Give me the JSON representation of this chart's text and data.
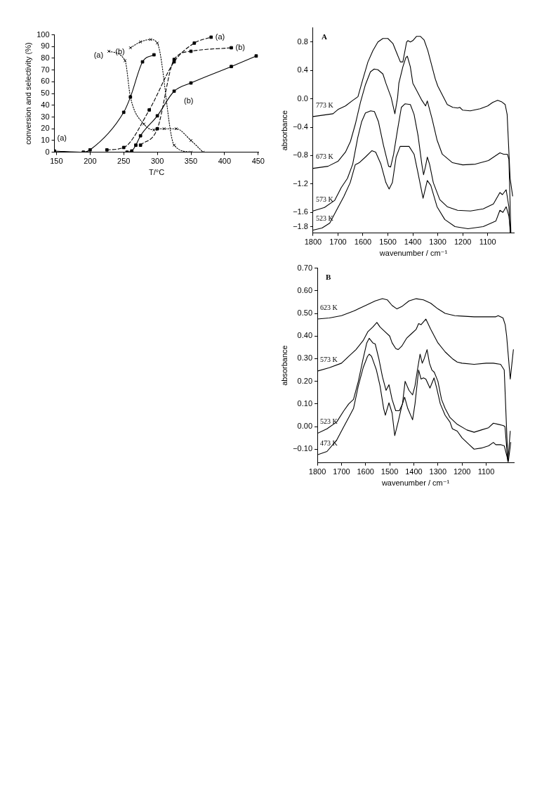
{
  "chart_data": [
    {
      "type": "line",
      "xlabel": "T/°C",
      "ylabel": "conversion and selectivity (%)",
      "xlim": [
        147,
        451
      ],
      "ylim": [
        0,
        100
      ],
      "xticks": [
        150,
        200,
        250,
        300,
        350,
        400,
        450
      ],
      "yticks": [
        0,
        10,
        20,
        30,
        40,
        50,
        60,
        70,
        80,
        90,
        100
      ],
      "series": [
        {
          "name": "(a)",
          "color": "#000000",
          "line_style": "solid",
          "marker": "square",
          "x": [
            147,
            190,
            200,
            250,
            260,
            278,
            295
          ],
          "values": [
            1,
            0,
            2,
            34,
            47,
            77,
            83
          ]
        },
        {
          "name": "(b)",
          "color": "#000000",
          "line_style": "solid",
          "marker": "square",
          "x": [
            255,
            262,
            268,
            275,
            300,
            325,
            350,
            410,
            447
          ],
          "values": [
            0,
            1,
            6,
            14,
            31,
            52,
            59,
            73,
            82
          ]
        },
        {
          "name": "(a)",
          "color": "#000000",
          "line_style": "dashed",
          "marker": "square",
          "x": [
            225,
            250,
            288,
            325,
            355,
            380
          ],
          "values": [
            2,
            4,
            36,
            77,
            93,
            98
          ]
        },
        {
          "name": "(b)",
          "color": "#000000",
          "line_style": "dashed",
          "marker": "square",
          "x": [
            275,
            300,
            325,
            350,
            410
          ],
          "values": [
            6,
            20,
            79,
            86,
            89
          ]
        },
        {
          "name": "(a)",
          "color": "#000000",
          "line_style": "dotted",
          "marker": "cross",
          "x": [
            228,
            252,
            260,
            280,
            295,
            300,
            310,
            328,
            350,
            368
          ],
          "values": [
            86,
            78,
            47,
            24,
            19,
            20,
            20,
            20,
            10,
            0
          ]
        },
        {
          "name": "(b)",
          "color": "#000000",
          "line_style": "dotted",
          "marker": "cross",
          "x": [
            260,
            275,
            290,
            300,
            325,
            350
          ],
          "values": [
            89,
            94,
            96,
            93,
            6,
            0
          ]
        }
      ]
    },
    {
      "type": "line",
      "xlabel": "wavenumber / cm⁻¹",
      "ylabel": "absorbance",
      "annotations": [
        "A"
      ],
      "xlim": [
        1800,
        995
      ],
      "ylim": [
        -1.89,
        1.0
      ],
      "xticks": [
        1800,
        1700,
        1600,
        1500,
        1400,
        1300,
        1200,
        1100
      ],
      "yticks": [
        {
          "value": 0.8,
          "label": "0.8"
        },
        {
          "value": 0.4,
          "label": "0.4"
        },
        {
          "value": 0,
          "label": "0.0"
        },
        {
          "value": -0.4,
          "label": "−0.4"
        },
        {
          "value": -0.8,
          "label": "−0.8"
        },
        {
          "value": -1.2,
          "label": "−1.2"
        },
        {
          "value": -1.6,
          "label": "−1.6"
        },
        {
          "value": -1.8,
          "label": "−1.8"
        }
      ],
      "series": [
        {
          "name": "773 K",
          "color": "#000000",
          "x": [
            1800,
            1720,
            1700,
            1670,
            1640,
            1620,
            1600,
            1580,
            1560,
            1540,
            1520,
            1500,
            1480,
            1465,
            1450,
            1440,
            1425,
            1420,
            1410,
            1400,
            1385,
            1370,
            1355,
            1340,
            1325,
            1310,
            1300,
            1262,
            1240,
            1220,
            1212,
            1200,
            1170,
            1130,
            1100,
            1080,
            1060,
            1045,
            1030,
            1022,
            1010,
            1000
          ],
          "values": [
            -0.25,
            -0.21,
            -0.15,
            -0.1,
            -0.02,
            0.03,
            0.28,
            0.52,
            0.68,
            0.8,
            0.85,
            0.85,
            0.78,
            0.65,
            0.52,
            0.52,
            0.8,
            0.82,
            0.8,
            0.82,
            0.88,
            0.88,
            0.83,
            0.68,
            0.48,
            0.28,
            0.18,
            -0.08,
            -0.12,
            -0.13,
            -0.12,
            -0.16,
            -0.17,
            -0.14,
            -0.1,
            -0.05,
            -0.02,
            -0.04,
            -0.08,
            -0.22,
            -1.12,
            -1.37
          ]
        },
        {
          "name": "673 K",
          "color": "#000000",
          "x": [
            1800,
            1740,
            1700,
            1670,
            1650,
            1630,
            1610,
            1590,
            1570,
            1555,
            1540,
            1520,
            1508,
            1487,
            1472,
            1461,
            1456,
            1440,
            1428,
            1422,
            1410,
            1400,
            1385,
            1364,
            1349,
            1342,
            1323,
            1303,
            1282,
            1241,
            1200,
            1149,
            1097,
            1051,
            1036,
            1021,
            1015,
            1007
          ],
          "values": [
            -0.98,
            -0.95,
            -0.88,
            -0.75,
            -0.6,
            -0.35,
            -0.05,
            0.2,
            0.38,
            0.42,
            0.41,
            0.35,
            0.22,
            0.02,
            -0.21,
            0.02,
            0.22,
            0.45,
            0.58,
            0.6,
            0.45,
            0.22,
            0.12,
            -0.02,
            -0.1,
            -0.03,
            -0.28,
            -0.58,
            -0.78,
            -0.9,
            -0.93,
            -0.92,
            -0.87,
            -0.76,
            -0.78,
            -0.78,
            -0.85,
            -1.88
          ]
        },
        {
          "name": "573 K",
          "color": "#000000",
          "x": [
            1800,
            1754,
            1713,
            1687,
            1662,
            1641,
            1621,
            1605,
            1590,
            1569,
            1554,
            1538,
            1518,
            1497,
            1489,
            1477,
            1462,
            1446,
            1431,
            1410,
            1395,
            1379,
            1364,
            1357,
            1349,
            1342,
            1333,
            1318,
            1292,
            1262,
            1221,
            1169,
            1118,
            1077,
            1051,
            1041,
            1026,
            1015,
            1010
          ],
          "values": [
            -1.58,
            -1.53,
            -1.43,
            -1.25,
            -1.12,
            -0.92,
            -0.55,
            -0.32,
            -0.2,
            -0.17,
            -0.18,
            -0.32,
            -0.65,
            -0.95,
            -0.96,
            -0.78,
            -0.45,
            -0.12,
            -0.07,
            -0.08,
            -0.22,
            -0.52,
            -0.92,
            -1.07,
            -0.95,
            -0.82,
            -0.92,
            -1.18,
            -1.42,
            -1.52,
            -1.57,
            -1.58,
            -1.55,
            -1.48,
            -1.32,
            -1.35,
            -1.28,
            -1.52,
            -1.88
          ]
        },
        {
          "name": "523 K",
          "color": "#000000",
          "x": [
            1800,
            1764,
            1733,
            1703,
            1677,
            1651,
            1631,
            1615,
            1590,
            1564,
            1549,
            1528,
            1508,
            1495,
            1482,
            1467,
            1451,
            1415,
            1395,
            1379,
            1359,
            1342,
            1328,
            1303,
            1272,
            1231,
            1179,
            1118,
            1067,
            1051,
            1039,
            1026,
            1015,
            1008
          ],
          "values": [
            -1.85,
            -1.82,
            -1.75,
            -1.55,
            -1.38,
            -1.18,
            -0.93,
            -0.9,
            -0.82,
            -0.73,
            -0.75,
            -0.92,
            -1.18,
            -1.27,
            -1.18,
            -0.82,
            -0.67,
            -0.67,
            -0.78,
            -1.05,
            -1.4,
            -1.15,
            -1.22,
            -1.52,
            -1.7,
            -1.8,
            -1.83,
            -1.8,
            -1.72,
            -1.57,
            -1.6,
            -1.52,
            -1.65,
            -1.88
          ]
        }
      ]
    },
    {
      "type": "line",
      "xlabel": "wavenumber / cm⁻¹",
      "ylabel": "absorbance",
      "annotations": [
        "B"
      ],
      "xlim": [
        1800,
        985
      ],
      "ylim": [
        -0.16,
        0.7
      ],
      "xticks": [
        1800,
        1700,
        1600,
        1500,
        1400,
        1300,
        1200,
        1100
      ],
      "yticks": [
        {
          "value": 0.7,
          "label": "0.70"
        },
        {
          "value": 0.6,
          "label": "0.60"
        },
        {
          "value": 0.5,
          "label": "0.50"
        },
        {
          "value": 0.4,
          "label": "0.40"
        },
        {
          "value": 0.3,
          "label": "0.30"
        },
        {
          "value": 0.2,
          "label": "0.20"
        },
        {
          "value": 0.1,
          "label": "0.10"
        },
        {
          "value": 0,
          "label": "0.00"
        },
        {
          "value": -0.1,
          "label": "−0.10"
        }
      ],
      "series": [
        {
          "name": "623 K",
          "color": "#000000",
          "x": [
            1800,
            1750,
            1700,
            1650,
            1600,
            1560,
            1530,
            1510,
            1490,
            1470,
            1450,
            1420,
            1390,
            1360,
            1330,
            1300,
            1270,
            1230,
            1200,
            1150,
            1100,
            1060,
            1050,
            1030,
            1021,
            1015,
            1000,
            987
          ],
          "values": [
            0.475,
            0.48,
            0.49,
            0.51,
            0.535,
            0.555,
            0.565,
            0.56,
            0.535,
            0.52,
            0.53,
            0.555,
            0.565,
            0.56,
            0.545,
            0.52,
            0.5,
            0.49,
            0.488,
            0.485,
            0.485,
            0.485,
            0.49,
            0.48,
            0.45,
            0.4,
            0.21,
            0.34
          ]
        },
        {
          "name": "573 K",
          "color": "#000000",
          "x": [
            1800,
            1750,
            1700,
            1670,
            1640,
            1610,
            1590,
            1570,
            1553,
            1540,
            1520,
            1500,
            1490,
            1475,
            1465,
            1450,
            1430,
            1410,
            1390,
            1380,
            1370,
            1350,
            1330,
            1300,
            1270,
            1240,
            1220,
            1200,
            1150,
            1100,
            1070,
            1040,
            1025,
            1010
          ],
          "values": [
            0.245,
            0.26,
            0.28,
            0.31,
            0.34,
            0.38,
            0.42,
            0.44,
            0.46,
            0.44,
            0.42,
            0.4,
            0.37,
            0.345,
            0.34,
            0.355,
            0.39,
            0.41,
            0.43,
            0.455,
            0.45,
            0.475,
            0.43,
            0.37,
            0.33,
            0.3,
            0.285,
            0.28,
            0.275,
            0.28,
            0.28,
            0.275,
            0.25,
            -0.15
          ]
        },
        {
          "name": "523 K",
          "color": "#000000",
          "x": [
            1800,
            1760,
            1720,
            1690,
            1670,
            1650,
            1630,
            1610,
            1595,
            1585,
            1570,
            1560,
            1545,
            1530,
            1515,
            1503,
            1490,
            1475,
            1460,
            1447,
            1436,
            1420,
            1405,
            1395,
            1385,
            1374,
            1365,
            1357,
            1345,
            1335,
            1325,
            1315,
            1300,
            1285,
            1270,
            1250,
            1220,
            1180,
            1150,
            1120,
            1090,
            1070,
            1050,
            1030,
            1022,
            1010,
            1000
          ],
          "values": [
            -0.03,
            -0.01,
            0.02,
            0.07,
            0.1,
            0.12,
            0.2,
            0.3,
            0.37,
            0.39,
            0.37,
            0.365,
            0.3,
            0.22,
            0.16,
            0.185,
            0.12,
            0.07,
            0.07,
            0.1,
            0.2,
            0.16,
            0.14,
            0.18,
            0.25,
            0.32,
            0.28,
            0.3,
            0.34,
            0.28,
            0.25,
            0.24,
            0.2,
            0.12,
            0.08,
            0.04,
            0.01,
            -0.015,
            -0.025,
            -0.015,
            -0.005,
            0.015,
            0.01,
            0.005,
            0.0,
            -0.155,
            -0.02
          ]
        },
        {
          "name": "473 K",
          "color": "#000000",
          "x": [
            1800,
            1760,
            1720,
            1690,
            1670,
            1650,
            1630,
            1610,
            1592,
            1585,
            1575,
            1565,
            1555,
            1540,
            1525,
            1518,
            1503,
            1490,
            1479,
            1465,
            1450,
            1438,
            1425,
            1405,
            1395,
            1380,
            1370,
            1360,
            1350,
            1333,
            1316,
            1305,
            1290,
            1270,
            1250,
            1240,
            1220,
            1200,
            1170,
            1150,
            1120,
            1090,
            1070,
            1060,
            1040,
            1025,
            1008,
            998
          ],
          "values": [
            -0.125,
            -0.11,
            -0.06,
            0.0,
            0.04,
            0.08,
            0.18,
            0.26,
            0.31,
            0.32,
            0.31,
            0.28,
            0.25,
            0.18,
            0.08,
            0.05,
            0.105,
            0.06,
            -0.04,
            0.02,
            0.09,
            0.13,
            0.08,
            0.03,
            0.1,
            0.25,
            0.21,
            0.215,
            0.21,
            0.17,
            0.215,
            0.17,
            0.1,
            0.05,
            0.02,
            -0.01,
            -0.02,
            -0.05,
            -0.08,
            -0.1,
            -0.095,
            -0.085,
            -0.07,
            -0.08,
            -0.08,
            -0.085,
            -0.155,
            -0.07
          ]
        }
      ]
    }
  ]
}
